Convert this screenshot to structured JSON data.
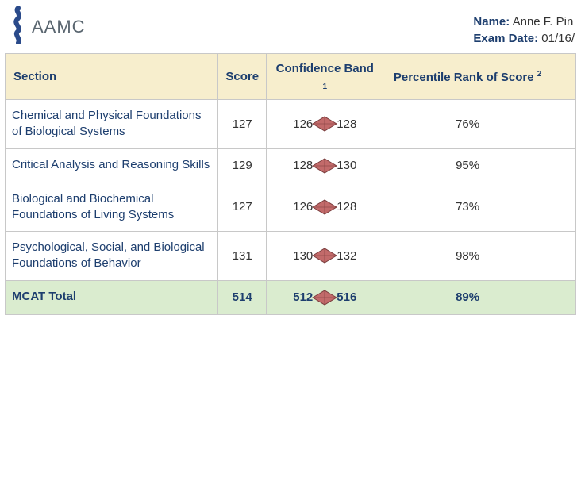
{
  "brand": {
    "name": "AAMC"
  },
  "meta": {
    "name_label": "Name:",
    "name_value": "Anne F. Pin",
    "date_label": "Exam Date:",
    "date_value": "01/16/"
  },
  "columns": {
    "section": "Section",
    "score": "Score",
    "confidence": "Confidence Band",
    "confidence_sup": "1",
    "percentile": "Percentile Rank of Score",
    "percentile_sup": "2"
  },
  "rows": [
    {
      "section": "Chemical and Physical Foundations of Biological Systems",
      "score": "127",
      "band_lo": "126",
      "band_hi": "128",
      "pct": "76%"
    },
    {
      "section": "Critical Analysis and Reasoning Skills",
      "score": "129",
      "band_lo": "128",
      "band_hi": "130",
      "pct": "95%"
    },
    {
      "section": "Biological and Biochemical Foundations of Living Systems",
      "score": "127",
      "band_lo": "126",
      "band_hi": "128",
      "pct": "73%"
    },
    {
      "section": "Psychological, Social, and Biological Foundations of Behavior",
      "score": "131",
      "band_lo": "130",
      "band_hi": "132",
      "pct": "98%"
    }
  ],
  "total": {
    "section": "MCAT Total",
    "score": "514",
    "band_lo": "512",
    "band_hi": "516",
    "pct": "89%"
  },
  "style": {
    "header_bg": "#f7eecd",
    "total_bg": "#daeccf",
    "border": "#c8c8c8",
    "link_text": "#1d3e6e",
    "body_text": "#333333",
    "diamond_fill": "#c26a6a",
    "diamond_stroke": "#7a3d3d",
    "diamond_w": 34,
    "diamond_h": 22,
    "logo_color": "#2a4a8a",
    "logo_text_color": "#5a6670"
  }
}
